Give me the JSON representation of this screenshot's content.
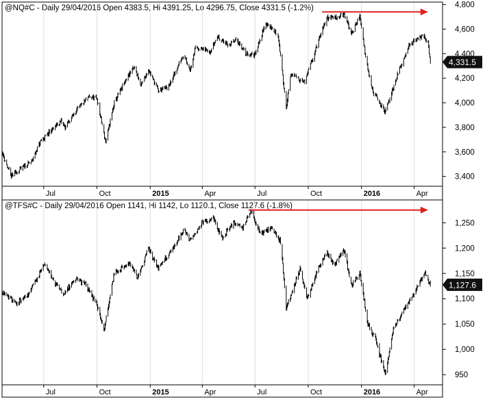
{
  "chart_data": [
    {
      "type": "ohlc",
      "title": "@NQ#C - Daily 29/04/2016 Open 4383.5, Hi 4391.25, Lo 4296.75, Close 4331.5 (-1.2%)",
      "ylim": [
        3320,
        4820
      ],
      "y_ticks": [
        3400,
        3600,
        3800,
        4000,
        4200,
        4400,
        4600,
        4800
      ],
      "y_tick_labels": [
        "3,400",
        "3,600",
        "3,800",
        "4,000",
        "4,200",
        "4,400",
        "4,600",
        "4,800"
      ],
      "x_range": [
        "2014-04-20",
        "2016-05-20"
      ],
      "x_ticks": [
        {
          "date": "2014-07-01",
          "label": "Jul",
          "bold": false
        },
        {
          "date": "2014-10-01",
          "label": "Oct",
          "bold": false
        },
        {
          "date": "2015-01-01",
          "label": "2015",
          "bold": true
        },
        {
          "date": "2015-04-01",
          "label": "Apr",
          "bold": false
        },
        {
          "date": "2015-07-01",
          "label": "Jul",
          "bold": false
        },
        {
          "date": "2015-10-01",
          "label": "Oct",
          "bold": false
        },
        {
          "date": "2016-01-01",
          "label": "2016",
          "bold": true
        },
        {
          "date": "2016-04-01",
          "label": "Apr",
          "bold": false
        }
      ],
      "last_value": 4331.5,
      "last_value_label": "4,331.5",
      "anchors": [
        [
          "2014-04-20",
          3600
        ],
        [
          "2014-05-05",
          3400
        ],
        [
          "2014-05-25",
          3470
        ],
        [
          "2014-06-10",
          3520
        ],
        [
          "2014-06-25",
          3680
        ],
        [
          "2014-07-15",
          3780
        ],
        [
          "2014-07-31",
          3850
        ],
        [
          "2014-08-07",
          3800
        ],
        [
          "2014-08-25",
          3930
        ],
        [
          "2014-09-18",
          4050
        ],
        [
          "2014-10-01",
          4030
        ],
        [
          "2014-10-16",
          3680
        ],
        [
          "2014-10-31",
          4000
        ],
        [
          "2014-11-25",
          4230
        ],
        [
          "2014-12-05",
          4290
        ],
        [
          "2014-12-16",
          4140
        ],
        [
          "2014-12-29",
          4270
        ],
        [
          "2015-01-15",
          4100
        ],
        [
          "2015-02-02",
          4130
        ],
        [
          "2015-02-28",
          4400
        ],
        [
          "2015-03-11",
          4270
        ],
        [
          "2015-03-20",
          4450
        ],
        [
          "2015-04-15",
          4420
        ],
        [
          "2015-04-27",
          4540
        ],
        [
          "2015-05-15",
          4470
        ],
        [
          "2015-05-31",
          4510
        ],
        [
          "2015-06-15",
          4400
        ],
        [
          "2015-06-30",
          4390
        ],
        [
          "2015-07-20",
          4650
        ],
        [
          "2015-08-10",
          4550
        ],
        [
          "2015-08-24",
          3960
        ],
        [
          "2015-09-01",
          4230
        ],
        [
          "2015-09-25",
          4170
        ],
        [
          "2015-10-15",
          4450
        ],
        [
          "2015-11-02",
          4690
        ],
        [
          "2015-11-20",
          4700
        ],
        [
          "2015-12-02",
          4720
        ],
        [
          "2015-12-15",
          4560
        ],
        [
          "2015-12-29",
          4710
        ],
        [
          "2016-01-08",
          4380
        ],
        [
          "2016-01-20",
          4100
        ],
        [
          "2016-02-11",
          3920
        ],
        [
          "2016-03-01",
          4200
        ],
        [
          "2016-03-22",
          4460
        ],
        [
          "2016-04-15",
          4550
        ],
        [
          "2016-04-25",
          4490
        ],
        [
          "2016-04-29",
          4331.5
        ]
      ],
      "arrow": {
        "x_from": "2015-10-25",
        "x_to": "2016-04-25",
        "y": 4740,
        "color": "#e0201c"
      }
    },
    {
      "type": "ohlc",
      "title": "@TFS#C - Daily 29/04/2016 Open 1141, Hi 1142, Lo 1120.1, Close 1127.6 (-1.8%)",
      "ylim": [
        930,
        1295
      ],
      "y_ticks": [
        950,
        1000,
        1050,
        1100,
        1150,
        1200,
        1250
      ],
      "y_tick_labels": [
        "950",
        "1,000",
        "1,050",
        "1,100",
        "1,150",
        "1,200",
        "1,250"
      ],
      "x_range": [
        "2014-04-20",
        "2016-05-20"
      ],
      "x_ticks": [
        {
          "date": "2014-07-01",
          "label": "Jul",
          "bold": false
        },
        {
          "date": "2014-10-01",
          "label": "Oct",
          "bold": false
        },
        {
          "date": "2015-01-01",
          "label": "2015",
          "bold": true
        },
        {
          "date": "2015-04-01",
          "label": "Apr",
          "bold": false
        },
        {
          "date": "2015-07-01",
          "label": "Jul",
          "bold": false
        },
        {
          "date": "2015-10-01",
          "label": "Oct",
          "bold": false
        },
        {
          "date": "2016-01-01",
          "label": "2016",
          "bold": true
        },
        {
          "date": "2016-04-01",
          "label": "Apr",
          "bold": false
        }
      ],
      "last_value": 1127.6,
      "last_value_label": "1,127.6",
      "anchors": [
        [
          "2014-04-20",
          1115
        ],
        [
          "2014-05-15",
          1090
        ],
        [
          "2014-06-05",
          1110
        ],
        [
          "2014-06-20",
          1140
        ],
        [
          "2014-07-03",
          1170
        ],
        [
          "2014-07-20",
          1130
        ],
        [
          "2014-08-05",
          1110
        ],
        [
          "2014-08-25",
          1140
        ],
        [
          "2014-09-10",
          1130
        ],
        [
          "2014-09-30",
          1090
        ],
        [
          "2014-10-13",
          1040
        ],
        [
          "2014-10-31",
          1150
        ],
        [
          "2014-11-25",
          1170
        ],
        [
          "2014-12-10",
          1140
        ],
        [
          "2014-12-29",
          1200
        ],
        [
          "2015-01-15",
          1160
        ],
        [
          "2015-02-10",
          1200
        ],
        [
          "2015-02-28",
          1235
        ],
        [
          "2015-03-11",
          1215
        ],
        [
          "2015-03-31",
          1250
        ],
        [
          "2015-04-20",
          1260
        ],
        [
          "2015-05-05",
          1220
        ],
        [
          "2015-05-25",
          1250
        ],
        [
          "2015-06-10",
          1240
        ],
        [
          "2015-06-23",
          1275
        ],
        [
          "2015-07-10",
          1230
        ],
        [
          "2015-07-31",
          1240
        ],
        [
          "2015-08-15",
          1210
        ],
        [
          "2015-08-24",
          1080
        ],
        [
          "2015-09-17",
          1160
        ],
        [
          "2015-09-29",
          1100
        ],
        [
          "2015-10-20",
          1165
        ],
        [
          "2015-11-03",
          1190
        ],
        [
          "2015-11-15",
          1165
        ],
        [
          "2015-12-01",
          1200
        ],
        [
          "2015-12-15",
          1125
        ],
        [
          "2015-12-29",
          1150
        ],
        [
          "2016-01-12",
          1050
        ],
        [
          "2016-01-25",
          1020
        ],
        [
          "2016-02-11",
          950
        ],
        [
          "2016-02-25",
          1040
        ],
        [
          "2016-03-15",
          1080
        ],
        [
          "2016-04-01",
          1110
        ],
        [
          "2016-04-20",
          1150
        ],
        [
          "2016-04-29",
          1127.6
        ]
      ],
      "arrow": {
        "x_from": "2015-06-20",
        "x_to": "2016-04-25",
        "y": 1275,
        "color": "#e0201c"
      }
    }
  ]
}
